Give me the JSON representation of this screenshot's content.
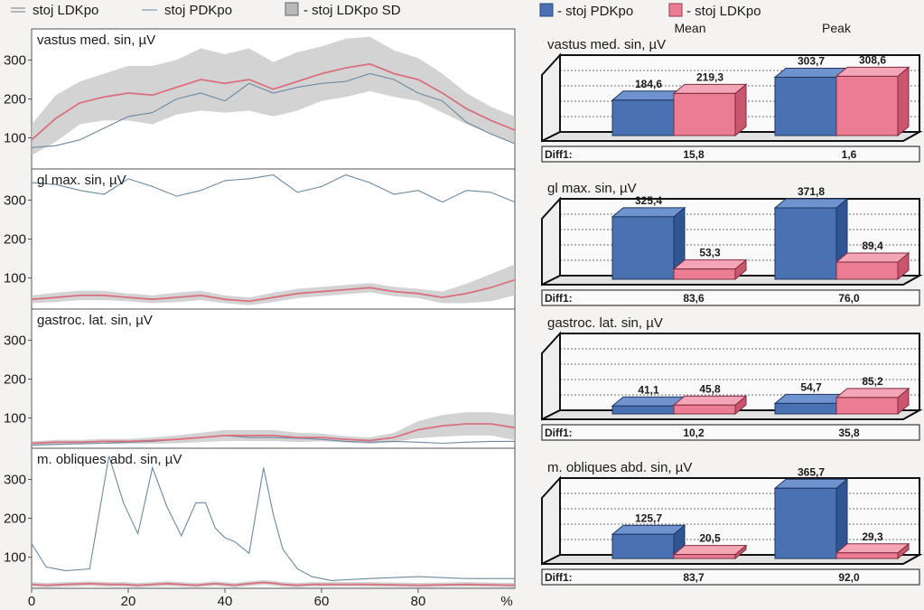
{
  "legend": {
    "left": [
      {
        "label": "stoj LDKpo",
        "color": "#8e8e8e",
        "kind": "double-line"
      },
      {
        "label": "stoj PDKpo",
        "color": "#5f7f96",
        "kind": "line"
      },
      {
        "label": "- stoj LDKpo SD",
        "color": "#b9b9b9",
        "kind": "box"
      }
    ],
    "right": [
      {
        "label": "- stoj PDKpo",
        "color": "#4a72b3"
      },
      {
        "label": "- stoj LDKpo",
        "color": "#e67a92"
      }
    ]
  },
  "colors": {
    "ldk_mean": "#d9707e",
    "pdk_line": "#6b8aa1",
    "sd_band": "#c4c4c4",
    "bar_blue": "#4a72b3",
    "bar_pink": "#ec7c94",
    "paper": "#f4f3f1"
  },
  "column_headers": [
    "Mean",
    "Peak"
  ],
  "diff_label": "Diff1:",
  "chart_data": [
    {
      "type": "line",
      "title": "vastus med. sin, µV",
      "x": [
        0,
        5,
        10,
        15,
        20,
        25,
        30,
        35,
        40,
        45,
        50,
        55,
        60,
        65,
        70,
        75,
        80,
        85,
        90,
        95,
        100
      ],
      "ylim": [
        20,
        380
      ],
      "yticks": [
        "100",
        "200",
        "300"
      ],
      "series": [
        {
          "name": "stoj LDKpo",
          "values": [
            95,
            150,
            190,
            205,
            215,
            210,
            230,
            250,
            240,
            250,
            225,
            245,
            265,
            280,
            290,
            265,
            250,
            215,
            175,
            145,
            120
          ]
        },
        {
          "name": "stoj LDKpo SD",
          "values": [
            40,
            60,
            55,
            60,
            70,
            75,
            70,
            80,
            75,
            80,
            70,
            75,
            70,
            75,
            70,
            60,
            55,
            50,
            40,
            35,
            35
          ]
        },
        {
          "name": "stoj PDKpo",
          "values": [
            75,
            80,
            95,
            125,
            155,
            165,
            200,
            215,
            195,
            240,
            215,
            230,
            240,
            245,
            265,
            250,
            215,
            195,
            140,
            110,
            85
          ]
        }
      ]
    },
    {
      "type": "line",
      "title": "gl max. sin, µV",
      "x": [
        0,
        5,
        10,
        15,
        20,
        25,
        30,
        35,
        40,
        45,
        50,
        55,
        60,
        65,
        70,
        75,
        80,
        85,
        90,
        95,
        100
      ],
      "ylim": [
        20,
        380
      ],
      "yticks": [
        "100",
        "200",
        "300"
      ],
      "series": [
        {
          "name": "stoj LDKpo",
          "values": [
            45,
            50,
            55,
            55,
            50,
            45,
            50,
            55,
            45,
            40,
            50,
            60,
            65,
            70,
            75,
            65,
            60,
            50,
            60,
            75,
            95
          ]
        },
        {
          "name": "stoj LDKpo SD",
          "values": [
            10,
            12,
            12,
            12,
            10,
            10,
            12,
            12,
            10,
            10,
            12,
            12,
            12,
            12,
            12,
            12,
            12,
            15,
            25,
            35,
            40
          ]
        },
        {
          "name": "stoj PDKpo",
          "values": [
            345,
            340,
            325,
            315,
            355,
            335,
            310,
            325,
            350,
            355,
            365,
            320,
            335,
            365,
            345,
            315,
            325,
            295,
            325,
            320,
            295
          ]
        }
      ]
    },
    {
      "type": "line",
      "title": "gastroc. lat. sin, µV",
      "x": [
        0,
        5,
        10,
        15,
        20,
        25,
        30,
        35,
        40,
        45,
        50,
        55,
        60,
        65,
        70,
        75,
        80,
        85,
        90,
        95,
        100
      ],
      "ylim": [
        20,
        380
      ],
      "yticks": [
        "100",
        "200",
        "300"
      ],
      "series": [
        {
          "name": "stoj LDKpo",
          "values": [
            35,
            38,
            38,
            40,
            40,
            42,
            45,
            50,
            55,
            55,
            55,
            50,
            50,
            45,
            42,
            50,
            70,
            80,
            85,
            85,
            75
          ]
        },
        {
          "name": "stoj LDKpo SD",
          "values": [
            5,
            6,
            6,
            6,
            6,
            8,
            10,
            12,
            14,
            14,
            14,
            12,
            10,
            8,
            8,
            12,
            22,
            28,
            30,
            30,
            32
          ]
        },
        {
          "name": "stoj PDKpo",
          "values": [
            30,
            32,
            34,
            35,
            38,
            40,
            45,
            50,
            55,
            50,
            50,
            48,
            45,
            40,
            38,
            40,
            38,
            35,
            38,
            40,
            40
          ]
        }
      ]
    },
    {
      "type": "line",
      "title": "m. obliques abd. sin, µV",
      "x": [
        0,
        3,
        7,
        12,
        16,
        19,
        22,
        25,
        28,
        31,
        34,
        36,
        38,
        40,
        42,
        45,
        48,
        50,
        52,
        55,
        58,
        62,
        70,
        80,
        90,
        100
      ],
      "ylim": [
        20,
        380
      ],
      "yticks": [
        "100",
        "200",
        "300"
      ],
      "series": [
        {
          "name": "stoj LDKpo",
          "values": [
            30,
            28,
            30,
            32,
            30,
            30,
            28,
            30,
            32,
            30,
            28,
            30,
            32,
            30,
            28,
            32,
            35,
            33,
            30,
            28,
            30,
            30,
            30,
            28,
            30,
            28
          ]
        },
        {
          "name": "stoj LDKpo SD",
          "values": [
            6,
            6,
            6,
            6,
            6,
            6,
            6,
            6,
            6,
            6,
            6,
            6,
            6,
            6,
            6,
            6,
            6,
            6,
            6,
            6,
            6,
            6,
            6,
            6,
            6,
            6
          ]
        },
        {
          "name": "stoj PDKpo",
          "values": [
            135,
            75,
            65,
            70,
            360,
            240,
            160,
            330,
            230,
            155,
            240,
            240,
            175,
            150,
            140,
            110,
            330,
            210,
            120,
            70,
            50,
            40,
            45,
            50,
            45,
            45
          ]
        }
      ]
    },
    {
      "type": "bar",
      "title": "vastus med. sin, µV",
      "categories": [
        "Mean",
        "Peak"
      ],
      "series": [
        {
          "name": "stoj PDKpo",
          "values": [
            184.6,
            303.7
          ],
          "labels": [
            "184,6",
            "303,7"
          ]
        },
        {
          "name": "stoj LDKpo",
          "values": [
            219.3,
            308.6
          ],
          "labels": [
            "219,3",
            "308,6"
          ]
        }
      ],
      "ylim": [
        0,
        400
      ],
      "diff": [
        "15,8",
        "1,6"
      ]
    },
    {
      "type": "bar",
      "title": "gl max. sin, µV",
      "categories": [
        "Mean",
        "Peak"
      ],
      "series": [
        {
          "name": "stoj PDKpo",
          "values": [
            325.4,
            371.8
          ],
          "labels": [
            "325,4",
            "371,8"
          ]
        },
        {
          "name": "stoj LDKpo",
          "values": [
            53.3,
            89.4
          ],
          "labels": [
            "53,3",
            "89,4"
          ]
        }
      ],
      "ylim": [
        0,
        400
      ],
      "diff": [
        "83,6",
        "76,0"
      ]
    },
    {
      "type": "bar",
      "title": "gastroc. lat. sin, µV",
      "categories": [
        "Mean",
        "Peak"
      ],
      "series": [
        {
          "name": "stoj PDKpo",
          "values": [
            41.1,
            54.7
          ],
          "labels": [
            "41,1",
            "54,7"
          ]
        },
        {
          "name": "stoj LDKpo",
          "values": [
            45.8,
            85.2
          ],
          "labels": [
            "45,8",
            "85,2"
          ]
        }
      ],
      "ylim": [
        0,
        400
      ],
      "diff": [
        "10,2",
        "35,8"
      ]
    },
    {
      "type": "bar",
      "title": "m. obliques abd. sin, µV",
      "categories": [
        "Mean",
        "Peak"
      ],
      "series": [
        {
          "name": "stoj PDKpo",
          "values": [
            125.7,
            365.7
          ],
          "labels": [
            "125,7",
            "365,7"
          ]
        },
        {
          "name": "stoj LDKpo",
          "values": [
            20.5,
            29.3
          ],
          "labels": [
            "20,5",
            "29,3"
          ]
        }
      ],
      "ylim": [
        0,
        400
      ],
      "diff": [
        "83,7",
        "92,0"
      ]
    }
  ],
  "x_axis": {
    "ticks": [
      "0",
      "20",
      "40",
      "60",
      "80"
    ],
    "unit": "%"
  }
}
